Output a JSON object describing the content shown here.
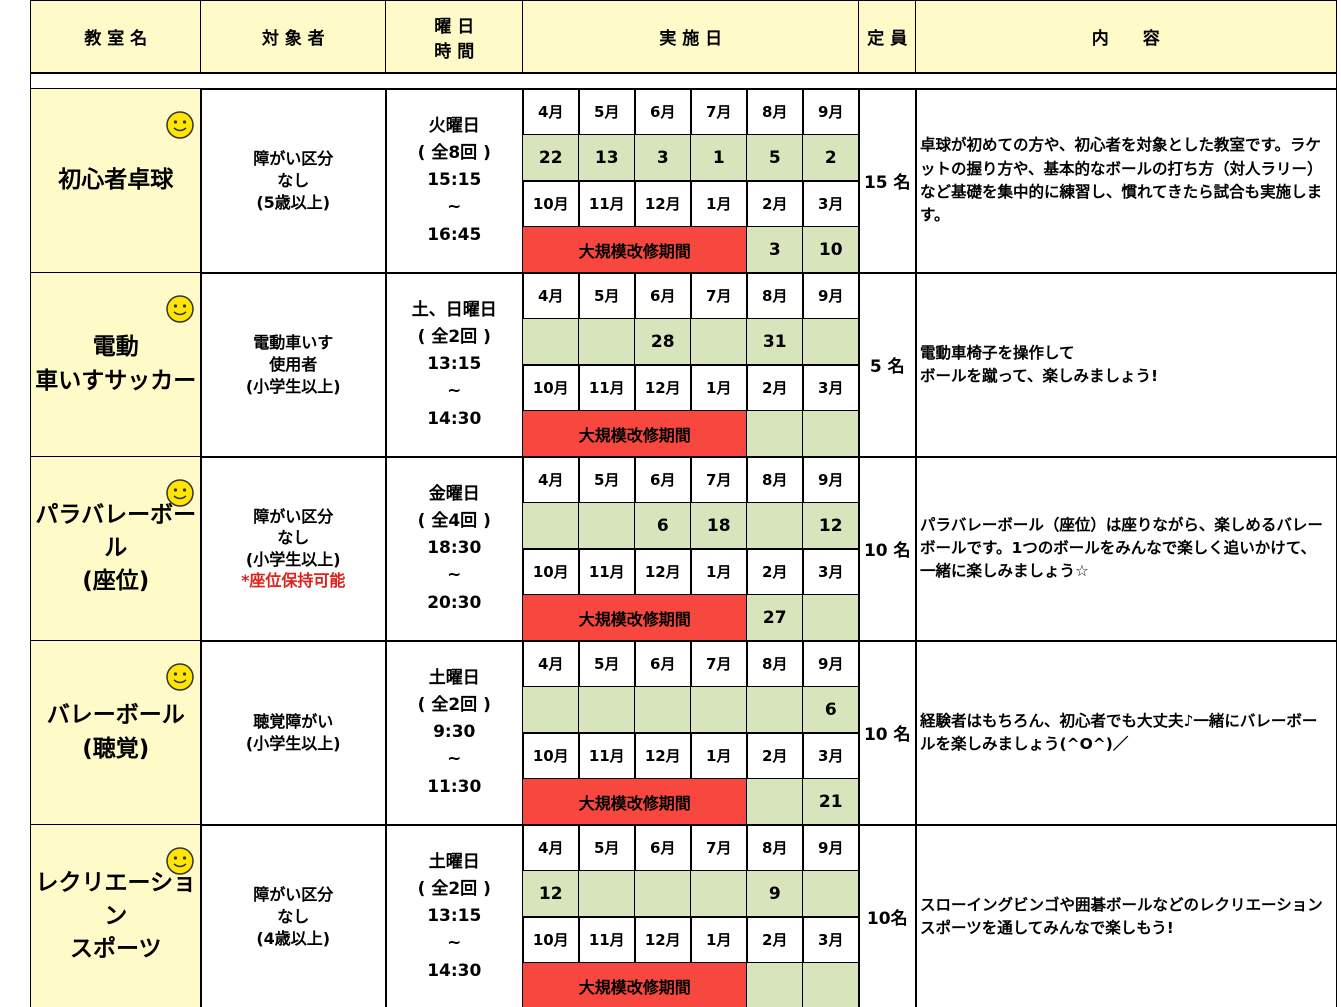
{
  "header": {
    "name": "教 室 名",
    "target": "対 象 者",
    "schedule": [
      "曜 日",
      "時 間"
    ],
    "dates": "実 施 日",
    "capacity": "定 員",
    "content": "内　　容"
  },
  "months": {
    "first": [
      "4月",
      "5月",
      "6月",
      "7月",
      "8月",
      "9月"
    ],
    "second": [
      "10月",
      "11月",
      "12月",
      "1月",
      "2月",
      "3月"
    ]
  },
  "closure": "大規模改修期間",
  "rows": [
    {
      "name": [
        "初心者卓球"
      ],
      "target": [
        "障がい区分",
        "なし",
        "(5歳以上)"
      ],
      "schedule": [
        "火曜日",
        "( 全8回 )",
        "15:15",
        "~",
        "16:45"
      ],
      "dates_first": [
        22,
        13,
        3,
        1,
        5,
        2
      ],
      "dates_second": [
        3,
        10
      ],
      "capacity": "15 名",
      "content": [
        "卓球が初めての方や、初心者を対象とした教室です。ラケットの握り方や、基本的なボールの打ち方（対人ラリー）など基礎を集中的に練習し、慣れてきたら試合も実施します。"
      ]
    },
    {
      "name": [
        "電動",
        "車いすサッカー"
      ],
      "target": [
        "電動車いす",
        "使用者",
        "(小学生以上)"
      ],
      "schedule": [
        "土、日曜日",
        "( 全2回 )",
        "13:15",
        "~",
        "14:30"
      ],
      "dates_first": [
        null,
        null,
        28,
        null,
        31,
        null
      ],
      "dates_second": [
        null,
        null
      ],
      "capacity": "5 名",
      "content": [
        "電動車椅子を操作して",
        "ボールを蹴って、楽しみましょう!"
      ]
    },
    {
      "name": [
        "パラバレーボール",
        "(座位)"
      ],
      "target": [
        "障がい区分",
        "なし",
        "(小学生以上)"
      ],
      "note": "*座位保持可能",
      "schedule": [
        "金曜日",
        "( 全4回 )",
        "18:30",
        "~",
        "20:30"
      ],
      "dates_first": [
        null,
        null,
        6,
        18,
        null,
        12
      ],
      "dates_second": [
        27,
        null
      ],
      "capacity": "10 名",
      "content": [
        "パラバレーボール（座位）は座りながら、楽しめるバレーボールです。1つのボールをみんなで楽しく追いかけて、一緒に楽しみましょう☆"
      ]
    },
    {
      "name": [
        "バレーボール",
        "(聴覚)"
      ],
      "target": [
        "聴覚障がい",
        "(小学生以上)"
      ],
      "schedule": [
        "土曜日",
        "( 全2回 )",
        "9:30",
        "~",
        "11:30"
      ],
      "dates_first": [
        null,
        null,
        null,
        null,
        null,
        6
      ],
      "dates_second": [
        null,
        21
      ],
      "capacity": "10 名",
      "content": [
        "経験者はもちろん、初心者でも大丈夫♪一緒にバレーボールを楽しみましょう(^O^)／"
      ]
    },
    {
      "name": [
        "レクリエーション",
        "スポーツ"
      ],
      "target": [
        "障がい区分",
        "なし",
        "(4歳以上)"
      ],
      "schedule": [
        "土曜日",
        "( 全2回 )",
        "13:15",
        "~",
        "14:30"
      ],
      "dates_first": [
        12,
        null,
        null,
        null,
        9,
        null
      ],
      "dates_second": [
        null,
        null
      ],
      "capacity": "10名",
      "content": [
        "スローイングビンゴや囲碁ボールなどのレクリエーションスポーツを通してみんなで楽しもう!"
      ]
    }
  ]
}
